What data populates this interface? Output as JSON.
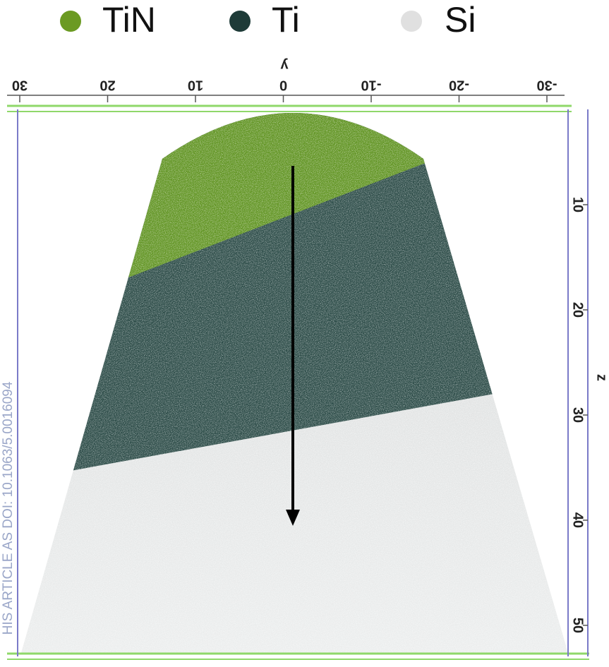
{
  "legend": {
    "items": [
      {
        "label": "TiN"
      },
      {
        "label": "Ti"
      },
      {
        "label": "Si"
      }
    ]
  },
  "top_axis": {
    "label": "y",
    "ticks": [
      "30",
      "20",
      "10",
      "0",
      "-10",
      "-20",
      "-30"
    ]
  },
  "right_axis": {
    "label": "z",
    "ticks": [
      "10",
      "20",
      "30",
      "40",
      "50"
    ]
  },
  "watermark": "HIS ARTICLE AS DOI: 10.1063/5.0016094"
}
